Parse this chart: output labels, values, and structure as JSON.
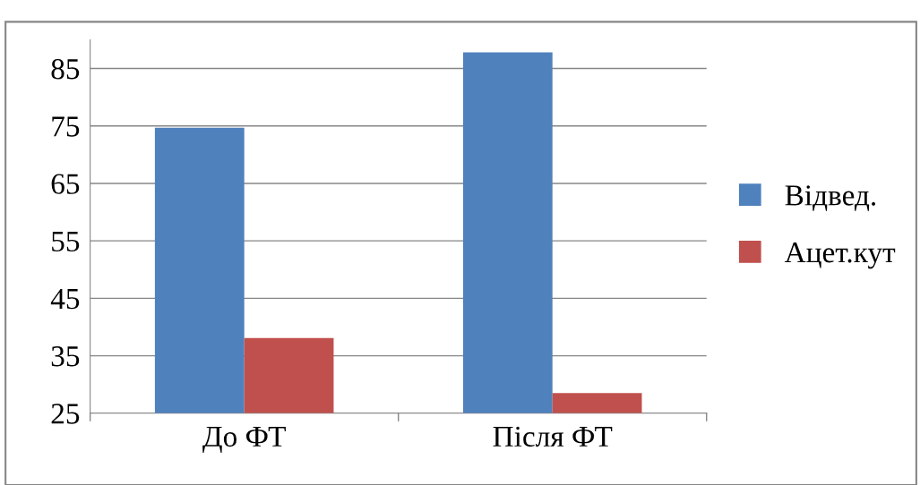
{
  "chart_data": {
    "type": "bar",
    "categories": [
      "До ФТ",
      "Після ФТ"
    ],
    "series": [
      {
        "name": "Відвед.",
        "color": "#4f81bd",
        "values": [
          74.7,
          87.8
        ]
      },
      {
        "name": "Ацет.кут",
        "color": "#c0504d",
        "values": [
          38.1,
          28.5
        ]
      }
    ],
    "ylim": [
      25,
      90
    ],
    "yticks": [
      25,
      35,
      45,
      55,
      65,
      75,
      85
    ],
    "grid": "y",
    "legend": "right"
  }
}
